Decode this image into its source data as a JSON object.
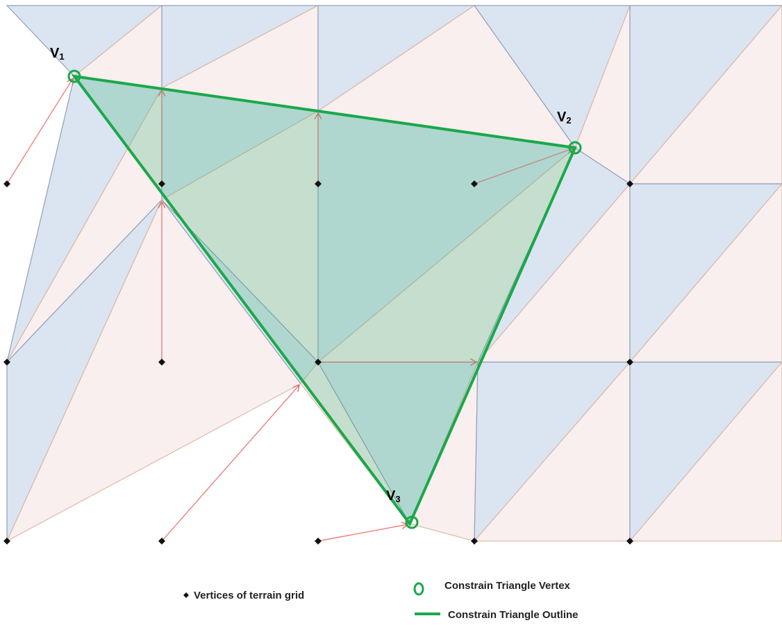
{
  "vertex_labels": [
    {
      "text": "V",
      "subscript": "1"
    },
    {
      "text": "V",
      "subscript": "2"
    },
    {
      "text": "V",
      "subscript": "3"
    }
  ],
  "legend": {
    "grid_vertices": "Vertices of terrain grid",
    "triangle_vertex": "Constrain Triangle Vertex",
    "triangle_outline": "Constrain Triangle Outline"
  }
}
